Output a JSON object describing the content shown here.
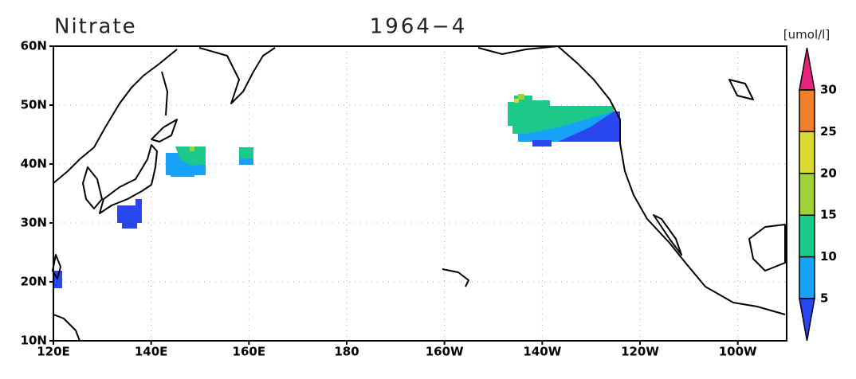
{
  "title": "Nitrate",
  "subtitle": "1964−4",
  "unit": "[umol/l]",
  "lon_range": [
    120,
    270
  ],
  "lat_range": [
    10,
    60
  ],
  "lat_ticks": [
    {
      "value": 60,
      "label": "60N"
    },
    {
      "value": 50,
      "label": "50N"
    },
    {
      "value": 40,
      "label": "40N"
    },
    {
      "value": 30,
      "label": "30N"
    },
    {
      "value": 20,
      "label": "20N"
    },
    {
      "value": 10,
      "label": "10N"
    }
  ],
  "lon_ticks": [
    {
      "value": 120,
      "label": "120E"
    },
    {
      "value": 140,
      "label": "140E"
    },
    {
      "value": 160,
      "label": "160E"
    },
    {
      "value": 180,
      "label": "180"
    },
    {
      "value": 200,
      "label": "160W"
    },
    {
      "value": 220,
      "label": "140W"
    },
    {
      "value": 240,
      "label": "120W"
    },
    {
      "value": 260,
      "label": "100W"
    }
  ],
  "colorbar": {
    "levels": [
      30,
      25,
      20,
      15,
      10,
      5
    ],
    "colors": [
      "#e8237e",
      "#ef7f2b",
      "#dcd832",
      "#9fd236",
      "#1bc98a",
      "#16a3f5",
      "#2a46f0"
    ]
  }
}
